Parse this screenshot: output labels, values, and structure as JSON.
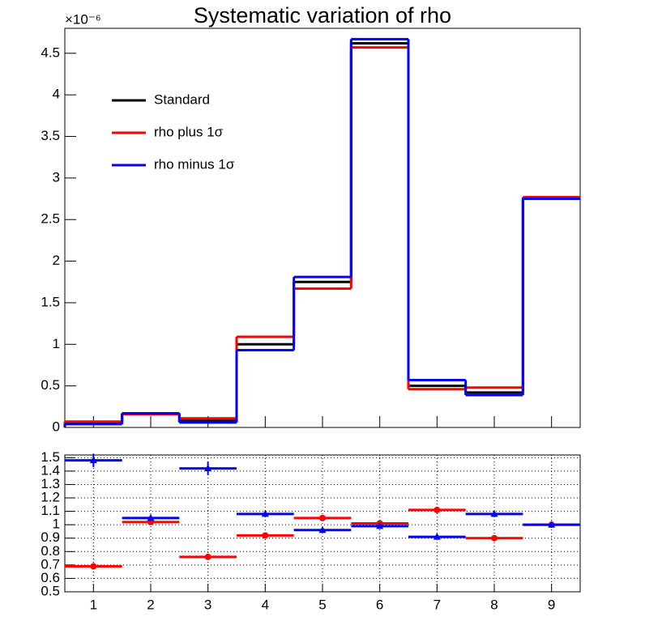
{
  "chart_data": [
    {
      "type": "histogram",
      "title": "Systematic variation of rho",
      "y_scale_label": "×10⁻⁶",
      "bins": [
        0.5,
        1.5,
        2.5,
        3.5,
        4.5,
        5.5,
        6.5,
        7.5,
        8.5,
        9.5
      ],
      "xlim": [
        0.5,
        9.5
      ],
      "ylim": [
        0,
        4.8
      ],
      "yticks": [
        0,
        0.5,
        1,
        1.5,
        2,
        2.5,
        3,
        3.5,
        4,
        4.5
      ],
      "legend": "top-left",
      "series": [
        {
          "name": "Standard",
          "color": "#000000",
          "values": [
            0.05,
            0.17,
            0.08,
            1.0,
            1.75,
            4.62,
            0.5,
            0.42,
            2.75
          ]
        },
        {
          "name": "rho plus  1σ",
          "color": "#ff0000",
          "values": [
            0.07,
            0.16,
            0.11,
            1.09,
            1.67,
            4.57,
            0.46,
            0.48,
            2.77
          ]
        },
        {
          "name": "rho minus 1σ",
          "color": "#0000ff",
          "values": [
            0.04,
            0.17,
            0.06,
            0.93,
            1.81,
            4.67,
            0.57,
            0.39,
            2.75
          ]
        }
      ]
    },
    {
      "type": "errorbar",
      "x": [
        1,
        2,
        3,
        4,
        5,
        6,
        7,
        8,
        9
      ],
      "xlim": [
        0.5,
        9.5
      ],
      "xticks": [
        1,
        2,
        3,
        4,
        5,
        6,
        7,
        8,
        9
      ],
      "ylim": [
        0.5,
        1.52
      ],
      "yticks": [
        0.5,
        0.6,
        0.7,
        0.8,
        0.9,
        1,
        1.1,
        1.2,
        1.3,
        1.4,
        1.5
      ],
      "grid": true,
      "series": [
        {
          "color": "#ff0000",
          "marker": "circle",
          "values": [
            0.69,
            1.02,
            0.76,
            0.92,
            1.05,
            1.01,
            1.11,
            0.9,
            1.0
          ],
          "errors": [
            0.02,
            0.01,
            0.02,
            0.01,
            0.01,
            0.01,
            0.01,
            0.01,
            0.01
          ]
        },
        {
          "color": "#0000ff",
          "marker": "triangle",
          "values": [
            1.48,
            1.05,
            1.42,
            1.08,
            0.96,
            0.99,
            0.91,
            1.08,
            1.0
          ],
          "errors": [
            0.05,
            0.01,
            0.05,
            0.01,
            0.01,
            0.01,
            0.01,
            0.01,
            0.01
          ]
        }
      ]
    }
  ]
}
